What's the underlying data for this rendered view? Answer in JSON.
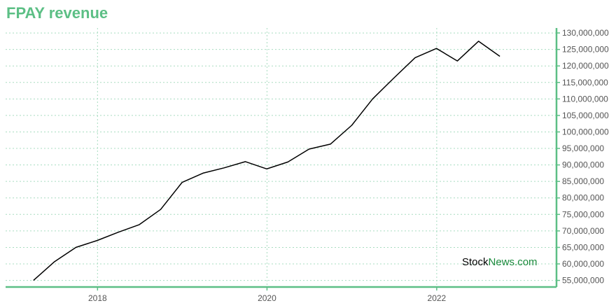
{
  "chart_data": {
    "type": "line",
    "title": "FPAY revenue",
    "xlabel": "",
    "ylabel": "",
    "x_ticks": [
      "2018",
      "2020",
      "2022"
    ],
    "y_ticks": [
      "55,000,000",
      "60,000,000",
      "65,000,000",
      "70,000,000",
      "75,000,000",
      "80,000,000",
      "85,000,000",
      "90,000,000",
      "95,000,000",
      "100,000,000",
      "105,000,000",
      "110,000,000",
      "115,000,000",
      "120,000,000",
      "125,000,000",
      "130,000,000"
    ],
    "ylim": [
      53000000,
      131500000
    ],
    "xlim": [
      "2016-12-01",
      "2023-06-01"
    ],
    "grid": true,
    "y_axis_position": "right",
    "series": [
      {
        "color": "#000000",
        "points": [
          {
            "x": "2017-03-31",
            "y": 55000000
          },
          {
            "x": "2017-06-30",
            "y": 60700000
          },
          {
            "x": "2017-09-30",
            "y": 65000000
          },
          {
            "x": "2017-12-31",
            "y": 67100000
          },
          {
            "x": "2018-03-31",
            "y": 69600000
          },
          {
            "x": "2018-06-30",
            "y": 71900000
          },
          {
            "x": "2018-09-30",
            "y": 76500000
          },
          {
            "x": "2018-12-31",
            "y": 84700000
          },
          {
            "x": "2019-03-31",
            "y": 87500000
          },
          {
            "x": "2019-06-30",
            "y": 89100000
          },
          {
            "x": "2019-09-30",
            "y": 91000000
          },
          {
            "x": "2019-12-31",
            "y": 88800000
          },
          {
            "x": "2020-03-31",
            "y": 90900000
          },
          {
            "x": "2020-06-30",
            "y": 94800000
          },
          {
            "x": "2020-09-30",
            "y": 96300000
          },
          {
            "x": "2020-12-31",
            "y": 102000000
          },
          {
            "x": "2021-03-31",
            "y": 110000000
          },
          {
            "x": "2021-06-30",
            "y": 116300000
          },
          {
            "x": "2021-09-30",
            "y": 122500000
          },
          {
            "x": "2021-12-31",
            "y": 125300000
          },
          {
            "x": "2022-03-31",
            "y": 121500000
          },
          {
            "x": "2022-06-30",
            "y": 127500000
          },
          {
            "x": "2022-09-30",
            "y": 122900000
          }
        ]
      }
    ]
  },
  "colors": {
    "accent": "#5cbf85",
    "grid": "#a8dcc0",
    "line": "#000000",
    "watermark_dark": "#000000",
    "watermark_green": "#1a8a3c"
  },
  "watermark": {
    "part1": "Stock",
    "part2": "News",
    "part3": ".com"
  }
}
